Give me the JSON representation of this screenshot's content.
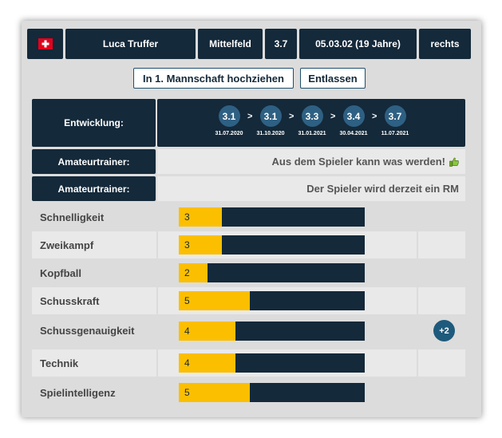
{
  "player": {
    "flag": "swiss-flag",
    "name": "Luca Truffer",
    "position": "Mittelfeld",
    "rating": "3.7",
    "birthdate": "05.03.02 (19 Jahre)",
    "foot": "rechts"
  },
  "actions": {
    "promote_label": "In 1. Mannschaft hochziehen",
    "dismiss_label": "Entlassen"
  },
  "development": {
    "label": "Entwicklung:",
    "separator": ">",
    "steps": [
      {
        "value": "3.1",
        "date": "31.07.2020"
      },
      {
        "value": "3.1",
        "date": "31.10.2020"
      },
      {
        "value": "3.3",
        "date": "31.01.2021"
      },
      {
        "value": "3.4",
        "date": "30.04.2021"
      },
      {
        "value": "3.7",
        "date": "11.07.2021"
      }
    ]
  },
  "trainer_comments": [
    {
      "label": "Amateurtrainer:",
      "text": "Aus dem Spieler kann was werden!",
      "icon": "thumbs-up-icon"
    },
    {
      "label": "Amateurtrainer:",
      "text": "Der Spieler wird derzeit ein RM"
    }
  ],
  "attributes": [
    {
      "name": "Schnelligkeit",
      "value": "3",
      "fill_fraction": 0.23
    },
    {
      "name": "Zweikampf",
      "value": "3",
      "fill_fraction": 0.23
    },
    {
      "name": "Kopfball",
      "value": "2",
      "fill_fraction": 0.155
    },
    {
      "name": "Schusskraft",
      "value": "5",
      "fill_fraction": 0.38
    },
    {
      "name": "Schussgenauigkeit",
      "value": "4",
      "fill_fraction": 0.305
    },
    {
      "name": "Technik",
      "value": "4",
      "fill_fraction": 0.305
    },
    {
      "name": "Spielintelligenz",
      "value": "5",
      "fill_fraction": 0.38
    }
  ],
  "bonus_badge": "+2",
  "colors": {
    "bar_fill": "#fbbf00",
    "bar_bg": "#14293a",
    "accent": "#2e6083"
  }
}
